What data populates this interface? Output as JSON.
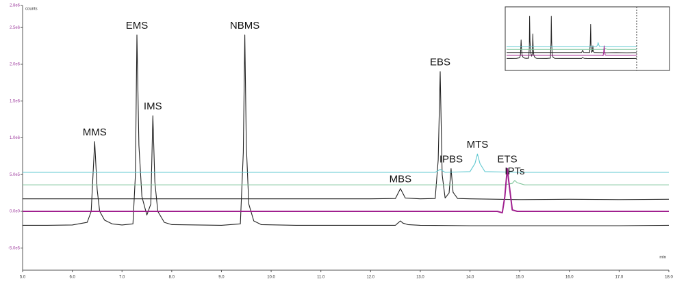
{
  "chart_data": {
    "type": "line",
    "y_label": "counts",
    "x_label": "min",
    "xlim": [
      5.0,
      18.0
    ],
    "ylim": [
      -800000,
      2800000
    ],
    "xticks": [
      {
        "value": 5,
        "label": "5.0"
      },
      {
        "value": 6,
        "label": "6.0"
      },
      {
        "value": 7,
        "label": "7.0"
      },
      {
        "value": 8,
        "label": "8.0"
      },
      {
        "value": 9,
        "label": "9.0"
      },
      {
        "value": 10,
        "label": "10.0"
      },
      {
        "value": 11,
        "label": "11.0"
      },
      {
        "value": 12,
        "label": "12.0"
      },
      {
        "value": 13,
        "label": "13.0"
      },
      {
        "value": 14,
        "label": "14.0"
      },
      {
        "value": 15,
        "label": "15.0"
      },
      {
        "value": 16,
        "label": "16.0"
      },
      {
        "value": 17,
        "label": "17.0"
      },
      {
        "value": 18,
        "label": "18.0"
      }
    ],
    "yticks": [
      {
        "value": -500000,
        "label": "-5.0e5"
      },
      {
        "value": 0,
        "label": "0.0e0"
      },
      {
        "value": 500000,
        "label": "5.0e5"
      },
      {
        "value": 1000000,
        "label": "1.0e6"
      },
      {
        "value": 1500000,
        "label": "1.5e6"
      },
      {
        "value": 2000000,
        "label": "2.0e6"
      },
      {
        "value": 2500000,
        "label": "2.5e6"
      },
      {
        "value": 2800000,
        "label": "2.8e6"
      }
    ],
    "series": [
      {
        "color": "#222222",
        "x": [
          5.0,
          5.5,
          6.0,
          6.3,
          6.38,
          6.45,
          6.5,
          6.55,
          6.65,
          6.8,
          7.0,
          7.22,
          7.27,
          7.3,
          7.34,
          7.4,
          7.5,
          7.58,
          7.62,
          7.66,
          7.72,
          7.85,
          8.0,
          9.0,
          9.38,
          9.44,
          9.47,
          9.5,
          9.55,
          9.65,
          9.8,
          10.5,
          12.5,
          12.55,
          12.6,
          12.65,
          12.75,
          13.0,
          14.0,
          15.0,
          16.0,
          17.0,
          18.0
        ],
        "values": [
          -190000,
          -190000,
          -185000,
          -150000,
          0,
          950000,
          300000,
          0,
          -120000,
          -170000,
          -185000,
          -170000,
          500000,
          2400000,
          900000,
          200000,
          -50000,
          100000,
          1300000,
          400000,
          0,
          -150000,
          -180000,
          -190000,
          -170000,
          800000,
          2400000,
          900000,
          100000,
          -130000,
          -180000,
          -190000,
          -190000,
          -160000,
          -130000,
          -160000,
          -180000,
          -190000,
          -195000,
          -195000,
          -195000,
          -195000,
          -190000
        ]
      },
      {
        "color": "#222222",
        "x": [
          5.0,
          12.0,
          12.5,
          12.6,
          12.7,
          13.0,
          13.3,
          13.36,
          13.4,
          13.44,
          13.5,
          13.58,
          13.62,
          13.66,
          13.75,
          14.0,
          15.0,
          16.0,
          17.0,
          18.0
        ],
        "values": [
          170000,
          170000,
          175000,
          310000,
          180000,
          170000,
          175000,
          700000,
          1900000,
          500000,
          180000,
          250000,
          580000,
          260000,
          175000,
          170000,
          160000,
          165000,
          160000,
          165000
        ]
      },
      {
        "color": "#5fc8d0",
        "x": [
          5.0,
          13.3,
          13.4,
          13.5,
          14.0,
          14.1,
          14.15,
          14.2,
          14.3,
          15.0,
          18.0
        ],
        "values": [
          530000,
          530000,
          570000,
          530000,
          540000,
          650000,
          780000,
          650000,
          540000,
          530000,
          530000
        ]
      },
      {
        "color": "#7fc49a",
        "x": [
          5.0,
          14.7,
          14.85,
          14.9,
          14.95,
          15.1,
          18.0
        ],
        "values": [
          360000,
          360000,
          380000,
          420000,
          390000,
          360000,
          360000
        ]
      },
      {
        "color": "#a0208f",
        "x": [
          5.0,
          14.55,
          14.65,
          14.7,
          14.75,
          14.8,
          14.85,
          14.95,
          15.0,
          18.0
        ],
        "values": [
          0,
          0,
          -20000,
          200000,
          580000,
          300000,
          20000,
          0,
          0,
          0
        ]
      }
    ],
    "annotations": [
      {
        "text": "MMS",
        "x": 6.45,
        "y": 950000
      },
      {
        "text": "EMS",
        "x": 7.3,
        "y": 2400000
      },
      {
        "text": "IMS",
        "x": 7.62,
        "y": 1300000
      },
      {
        "text": "NBMS",
        "x": 9.47,
        "y": 2400000
      },
      {
        "text": "MBS",
        "x": 12.6,
        "y": 310000
      },
      {
        "text": "EBS",
        "x": 13.4,
        "y": 1900000
      },
      {
        "text": "IPBS",
        "x": 13.62,
        "y": 580000
      },
      {
        "text": "MTS",
        "x": 14.15,
        "y": 780000
      },
      {
        "text": "ETS",
        "x": 14.75,
        "y": 580000
      },
      {
        "text": "IPTs",
        "x": 14.9,
        "y": 420000
      }
    ]
  }
}
